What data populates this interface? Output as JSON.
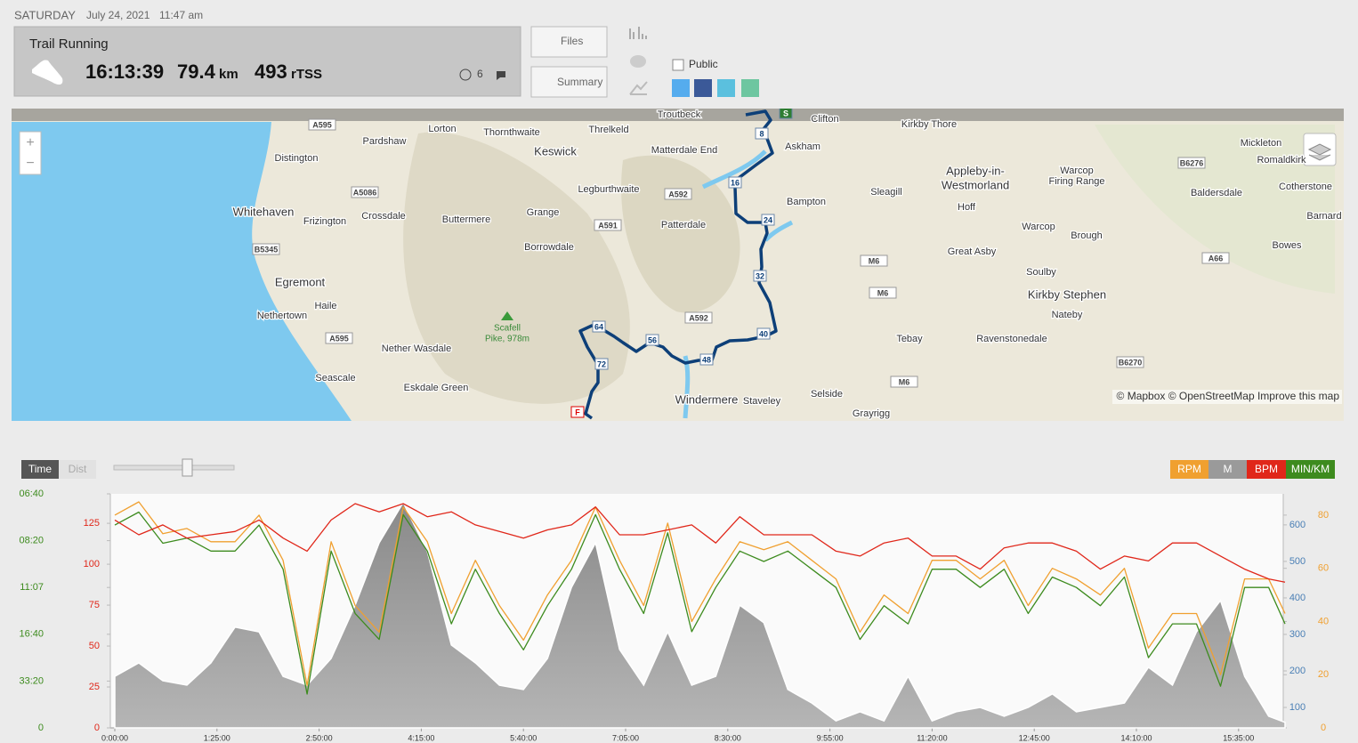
{
  "header": {
    "day": "SATURDAY",
    "date": "July 24, 2021",
    "time": "11:47 am"
  },
  "workout": {
    "sport": "Trail Running",
    "duration": "16:13:39",
    "distance": "79.4",
    "distance_unit": "km",
    "tss": "493",
    "tss_unit": "rTSS",
    "feeling": "6"
  },
  "buttons": {
    "files": "Files",
    "summary": "Summary"
  },
  "sharing": {
    "public": "Public"
  },
  "map": {
    "labels": [
      "Troutbeck",
      "Clifton",
      "Kirkby Thore",
      "Pardshaw",
      "Lorton",
      "Thornthwaite",
      "Threlkeld",
      "Distington",
      "Keswick",
      "Matterdale End",
      "Askham",
      "Mickleton",
      "Romaldkirk",
      "Appleby-in-",
      "Westmorland",
      "Warcop",
      "Firing Range",
      "Cotherstone",
      "Baldersdale",
      "Whitehaven",
      "Frizington",
      "Crossdale",
      "Buttermere",
      "Grange",
      "Legburthwaite",
      "Patterdale",
      "Bampton",
      "Sleagill",
      "Hoff",
      "Warcop",
      "Brough",
      "Barnard",
      "Bowes",
      "Borrowdale",
      "Great Asby",
      "Egremont",
      "Soulby",
      "Kirkby Stephen",
      "Haile",
      "Nateby",
      "Nethertown",
      "Tebay",
      "Ravenstonedale",
      "Nether Wasdale",
      "Seascale",
      "Eskdale Green",
      "Windermere",
      "Staveley",
      "Selside",
      "Grayrigg"
    ],
    "roads": [
      "A595",
      "A5086",
      "B5345",
      "A595",
      "A591",
      "A592",
      "A592",
      "M6",
      "M6",
      "M6",
      "B6276",
      "A66",
      "B6270"
    ],
    "peak": [
      "Scafell",
      "Pike, 978m"
    ],
    "markers": [
      "S",
      "8",
      "16",
      "24",
      "32",
      "40",
      "48",
      "56",
      "64",
      "72",
      "F"
    ],
    "attribution": "© Mapbox © OpenStreetMap Improve this map"
  },
  "chart_data": {
    "type": "line",
    "toggles": [
      "Time",
      "Dist"
    ],
    "x": [
      0,
      1200,
      2400,
      3600,
      4800,
      6000,
      7200,
      8400,
      9600,
      10800,
      12000,
      13200,
      14400,
      15600,
      16800,
      18000,
      19200,
      20400,
      21600,
      22800,
      24000,
      25200,
      26400,
      27600,
      28800,
      30000,
      31200,
      32400,
      33600,
      34800,
      36000,
      37200,
      38400,
      39600,
      40800,
      42000,
      43200,
      44400,
      45600,
      46800,
      48000,
      49200,
      50400,
      51600,
      52800,
      54000,
      55200,
      56400,
      57600,
      58419
    ],
    "xlim": [
      0,
      58419
    ],
    "xticks": [
      {
        "value": 0,
        "label": "0:00:00"
      },
      {
        "value": 5100,
        "label": "1:25:00"
      },
      {
        "value": 10200,
        "label": "2:50:00"
      },
      {
        "value": 15300,
        "label": "4:15:00"
      },
      {
        "value": 20400,
        "label": "5:40:00"
      },
      {
        "value": 25500,
        "label": "7:05:00"
      },
      {
        "value": 30600,
        "label": "8:30:00"
      },
      {
        "value": 35700,
        "label": "9:55:00"
      },
      {
        "value": 40800,
        "label": "11:20:00"
      },
      {
        "value": 45900,
        "label": "12:45:00"
      },
      {
        "value": 51000,
        "label": "14:10:00"
      },
      {
        "value": 56100,
        "label": "15:35:00"
      }
    ],
    "series": [
      {
        "name": "RPM",
        "color": "#f0a030",
        "ylim": [
          0,
          88
        ],
        "yticks": [
          0,
          20,
          40,
          60,
          80
        ],
        "values": [
          80,
          85,
          73,
          75,
          70,
          70,
          80,
          63,
          16,
          70,
          46,
          36,
          83,
          70,
          43,
          63,
          46,
          33,
          50,
          63,
          83,
          63,
          46,
          77,
          40,
          56,
          70,
          67,
          70,
          63,
          56,
          36,
          50,
          43,
          63,
          63,
          56,
          63,
          46,
          60,
          56,
          50,
          60,
          30,
          43,
          43,
          20,
          56,
          56,
          43
        ]
      },
      {
        "name": "M",
        "color": "#8c8c8c",
        "ylim": [
          44,
          685
        ],
        "yticks": [
          100,
          200,
          300,
          400,
          500,
          600
        ],
        "values": [
          185,
          222,
          173,
          161,
          222,
          320,
          307,
          185,
          161,
          234,
          380,
          551,
          661,
          527,
          271,
          222,
          161,
          149,
          234,
          429,
          551,
          259,
          161,
          307,
          161,
          185,
          380,
          332,
          149,
          112,
          63,
          88,
          63,
          185,
          63,
          88,
          100,
          76,
          100,
          137,
          88,
          100,
          112,
          210,
          161,
          307,
          393,
          185,
          76,
          59
        ]
      },
      {
        "name": "BPM",
        "color": "#e0271a",
        "ylim": [
          0,
          143
        ],
        "yticks": [
          0,
          25,
          50,
          75,
          100,
          125
        ],
        "values": [
          127,
          118,
          124,
          116,
          118,
          120,
          127,
          116,
          108,
          127,
          137,
          132,
          137,
          129,
          132,
          124,
          120,
          116,
          121,
          124,
          135,
          118,
          118,
          121,
          124,
          113,
          129,
          118,
          118,
          118,
          108,
          105,
          113,
          116,
          105,
          105,
          97,
          110,
          113,
          113,
          108,
          97,
          105,
          102,
          113,
          113,
          105,
          97,
          91,
          89
        ]
      },
      {
        "name": "MIN/KM",
        "color": "#3d8b1e",
        "ylim": [
          0,
          9
        ],
        "yticks": [
          0,
          {
            "value": 1.8,
            "label": "33:20"
          },
          {
            "value": 3.6,
            "label": "16:40"
          },
          {
            "value": 5.4,
            "label": "11:07"
          },
          {
            "value": 7.2,
            "label": "08:20"
          },
          {
            "value": 9,
            "label": "06:40"
          }
        ],
        "values": [
          7.8,
          8.3,
          7.1,
          7.3,
          6.8,
          6.8,
          7.8,
          6.1,
          1.3,
          6.8,
          4.4,
          3.4,
          8.2,
          6.8,
          4.0,
          6.1,
          4.4,
          3.0,
          4.7,
          6.1,
          8.2,
          6.1,
          4.4,
          7.5,
          3.7,
          5.4,
          6.8,
          6.4,
          6.8,
          6.1,
          5.4,
          3.4,
          4.7,
          4.0,
          6.1,
          6.1,
          5.4,
          6.1,
          4.4,
          5.8,
          5.4,
          4.7,
          5.8,
          2.7,
          4.0,
          4.0,
          1.6,
          5.4,
          5.4,
          4.0
        ]
      }
    ]
  }
}
